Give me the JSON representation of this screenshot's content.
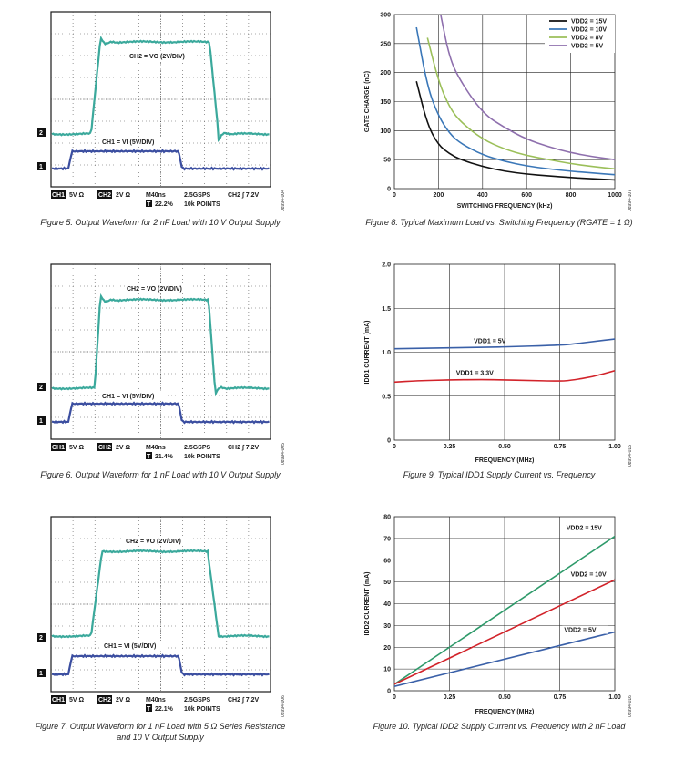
{
  "scopes": [
    {
      "id": "fig5",
      "caption": "Figure 5. Output Waveform for 2 nF Load with 10 V Output Supply",
      "fig_id": "08994-004",
      "ch2_label": "CH2 = VO (2V/DIV)",
      "ch1_label": "CH1 = VI (5V/DIV)",
      "ch1_marker": "1",
      "ch2_marker": "2",
      "footer": {
        "ch1_badge": "CH1",
        "ch1_scale": "5V Ω",
        "ch2_badge": "CH2",
        "ch2_scale": "2V Ω",
        "time": "M40ns",
        "trig_badge": "T",
        "trig_pos": "22.2%",
        "rate": "2.5GSPS",
        "points": "10k POINTS",
        "trig": "CH2 ∫ 7.2V"
      },
      "chart_data": {
        "type": "line",
        "grid": true,
        "x_divisions": 10,
        "y_divisions": 8,
        "series": [
          {
            "name": "CH2",
            "color": "#3ba99c",
            "level_low": 0.0,
            "level_high": 5.0,
            "rise_start": 0.0,
            "rise_end": 0.0,
            "overshoot": 0.1,
            "undershoot": 0.8
          },
          {
            "name": "CH1",
            "color": "#3b4ea0",
            "level_low": 0.0,
            "level_high": 5.0
          }
        ]
      }
    },
    {
      "id": "fig6",
      "caption": "Figure 6. Output Waveform for 1 nF Load with 10 V Output Supply",
      "fig_id": "08994-005",
      "ch2_label": "CH2 = VO (2V/DIV)",
      "ch1_label": "CH1 = VI (5V/DIV)",
      "ch1_marker": "1",
      "ch2_marker": "2",
      "footer": {
        "ch1_badge": "CH1",
        "ch1_scale": "5V Ω",
        "ch2_badge": "CH2",
        "ch2_scale": "2V Ω",
        "time": "M40ns",
        "trig_badge": "T",
        "trig_pos": "21.4%",
        "rate": "2.5GSPS",
        "points": "10k POINTS",
        "trig": "CH2 ∫ 7.2V"
      },
      "chart_data": {
        "type": "line",
        "grid": true,
        "x_divisions": 10,
        "y_divisions": 8,
        "series": [
          {
            "name": "CH2",
            "color": "#3ba99c"
          },
          {
            "name": "CH1",
            "color": "#3b4ea0"
          }
        ]
      }
    },
    {
      "id": "fig7",
      "caption": "Figure 7. Output Waveform for 1 nF Load with 5 Ω Series Resistance",
      "caption2": "and 10 V Output Supply",
      "fig_id": "08994-006",
      "ch2_label": "CH2 = VO (2V/DIV)",
      "ch1_label": "CH1 = VI (5V/DIV)",
      "ch1_marker": "1",
      "ch2_marker": "2",
      "footer": {
        "ch1_badge": "CH1",
        "ch1_scale": "5V Ω",
        "ch2_badge": "CH2",
        "ch2_scale": "2V Ω",
        "time": "M40ns",
        "trig_badge": "T",
        "trig_pos": "22.1%",
        "rate": "2.5GSPS",
        "points": "10k POINTS",
        "trig": "CH2 ∫ 7.2V"
      },
      "chart_data": {
        "type": "line",
        "grid": true,
        "x_divisions": 10,
        "y_divisions": 8,
        "series": [
          {
            "name": "CH2",
            "color": "#3ba99c"
          },
          {
            "name": "CH1",
            "color": "#3b4ea0"
          }
        ]
      }
    }
  ],
  "fig8": {
    "caption": "Figure 8. Typical Maximum Load vs. Switching Frequency (RGATE = 1 Ω)",
    "fig_id": "08994-107",
    "chart_data": {
      "type": "line",
      "xlabel": "SWITCHING FREQUENCY (kHz)",
      "ylabel": "GATE CHARGE (nC)",
      "xlim": [
        0,
        1000
      ],
      "ylim": [
        0,
        300
      ],
      "xticks": [
        0,
        200,
        400,
        600,
        800,
        1000
      ],
      "yticks": [
        0,
        50,
        100,
        150,
        200,
        250,
        300
      ],
      "legend_position": "top-right",
      "grid": true,
      "series": [
        {
          "name": "VDD2 = 15V",
          "color": "#111111",
          "x": [
            100,
            150,
            200,
            250,
            300,
            400,
            500,
            600,
            700,
            800,
            900,
            1000
          ],
          "y": [
            185,
            110,
            75,
            60,
            50,
            38,
            30,
            25,
            22,
            19,
            17,
            15
          ]
        },
        {
          "name": "VDD2 = 10V",
          "color": "#3a77b8",
          "x": [
            100,
            150,
            200,
            250,
            300,
            400,
            500,
            600,
            700,
            800,
            900,
            1000
          ],
          "y": [
            278,
            175,
            125,
            95,
            78,
            58,
            47,
            39,
            34,
            30,
            27,
            24
          ]
        },
        {
          "name": "VDD2 = 8V",
          "color": "#9bbf59",
          "x": [
            150,
            200,
            250,
            300,
            400,
            500,
            600,
            700,
            800,
            900,
            1000
          ],
          "y": [
            260,
            185,
            140,
            115,
            85,
            68,
            57,
            50,
            43,
            38,
            34
          ]
        },
        {
          "name": "VDD2 = 5V",
          "color": "#8e6fad",
          "x": [
            210,
            250,
            300,
            400,
            500,
            600,
            700,
            800,
            900,
            1000
          ],
          "y": [
            300,
            225,
            185,
            130,
            105,
            85,
            72,
            62,
            55,
            50
          ]
        }
      ]
    }
  },
  "fig9": {
    "caption": "Figure 9. Typical IDD1 Supply Current vs. Frequency",
    "fig_id": "08994-015",
    "chart_data": {
      "type": "line",
      "xlabel": "FREQUENCY (MHz)",
      "ylabel": "IDD1 CURRENT (mA)",
      "xlim": [
        0,
        1.0
      ],
      "ylim": [
        0,
        2.0
      ],
      "xticks": [
        "0",
        "0.25",
        "0.50",
        "0.75",
        "1.00"
      ],
      "yticks": [
        "0",
        "0.5",
        "1.0",
        "1.5",
        "2.0"
      ],
      "grid": true,
      "series": [
        {
          "name": "VDD1 = 5V",
          "color": "#3a60a8",
          "x": [
            0,
            0.25,
            0.5,
            0.75,
            0.8,
            0.9,
            1.0
          ],
          "y": [
            1.04,
            1.05,
            1.06,
            1.08,
            1.09,
            1.12,
            1.15
          ]
        },
        {
          "name": "VDD1 = 3.3V",
          "color": "#d2232a",
          "x": [
            0,
            0.1,
            0.25,
            0.4,
            0.5,
            0.6,
            0.75,
            0.8,
            0.9,
            1.0
          ],
          "y": [
            0.66,
            0.675,
            0.685,
            0.69,
            0.685,
            0.68,
            0.67,
            0.68,
            0.72,
            0.79
          ]
        }
      ],
      "annotations": [
        "VDD1 = 5V",
        "VDD1 = 3.3V"
      ]
    }
  },
  "fig10": {
    "caption": "Figure 10. Typical IDD2 Supply Current vs. Frequency with 2 nF Load",
    "fig_id": "08994-016",
    "chart_data": {
      "type": "line",
      "xlabel": "FREQUENCY (MHz)",
      "ylabel": "IDD2 CURRENT (mA)",
      "xlim": [
        0,
        1.0
      ],
      "ylim": [
        0,
        80
      ],
      "xticks": [
        "0",
        "0.25",
        "0.50",
        "0.75",
        "1.00"
      ],
      "yticks": [
        "0",
        "10",
        "20",
        "30",
        "40",
        "50",
        "60",
        "70",
        "80"
      ],
      "grid": true,
      "series": [
        {
          "name": "VDD2 = 15V",
          "color": "#2e9a6a",
          "x": [
            0,
            1.0
          ],
          "y": [
            3,
            71
          ]
        },
        {
          "name": "VDD2 = 10V",
          "color": "#d2232a",
          "x": [
            0,
            1.0
          ],
          "y": [
            3,
            51
          ]
        },
        {
          "name": "VDD2 = 5V",
          "color": "#3a60a8",
          "x": [
            0,
            1.0
          ],
          "y": [
            2,
            27
          ]
        }
      ]
    }
  }
}
